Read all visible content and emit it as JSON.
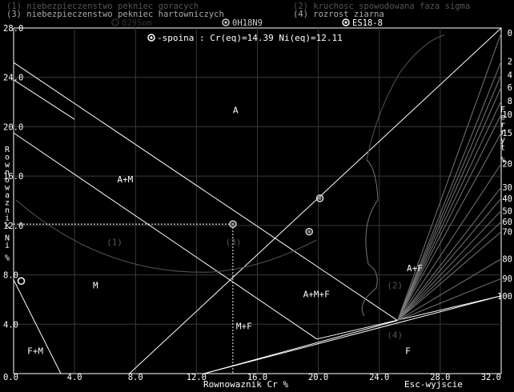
{
  "header": {
    "line1_left": "(1) niebezpieczenstwo pekniec goracych",
    "line1_right": "(2) kruchosc spowodowana faza sigma",
    "line2_left": "(3) niebezpieczenstwo pekniec hartowniczych",
    "line2_right": "(4) rozrost ziarna"
  },
  "legend": [
    {
      "label": "0295om",
      "marker": "open-circle",
      "color": "#303030",
      "dim": true
    },
    {
      "label": "0H18N9",
      "marker": "dotted-circle",
      "color": "#c0c0c0",
      "dim": false
    },
    {
      "label": "ES18-8",
      "marker": "dotted-circle",
      "color": "#ffffff",
      "dim": false
    }
  ],
  "weld_info": {
    "label": "-spoina : Cr(eq)=14.39  Ni(eq)=12.11",
    "cr_eq": 14.39,
    "ni_eq": 12.11
  },
  "footer": {
    "esc_text": "Esc-wyjscie"
  },
  "colors": {
    "background": "#000000",
    "foreground": "#ffffff",
    "grid": "#3a3a3a",
    "boundary": "#ffffff",
    "ferrite_lines": "#777777",
    "dim_region": "#555555"
  },
  "chart_data": {
    "type": "scatter",
    "title": "",
    "xlabel": "Rownowaznik Cr %",
    "ylabel": "Rownowaznik Ni %",
    "right_axis_label": "Ferryt %",
    "xlim": [
      0,
      32
    ],
    "ylim": [
      0,
      28
    ],
    "x_ticks": [
      {
        "value": 0,
        "label": "0.0"
      },
      {
        "value": 4,
        "label": "4.0"
      },
      {
        "value": 8,
        "label": "8.0"
      },
      {
        "value": 12,
        "label": "12.0"
      },
      {
        "value": 16,
        "label": "16.0"
      },
      {
        "value": 20,
        "label": "20.0"
      },
      {
        "value": 24,
        "label": "24.0"
      },
      {
        "value": 28,
        "label": "28.0"
      },
      {
        "value": 32,
        "label": "32.0"
      }
    ],
    "y_ticks": [
      {
        "value": 0,
        "label": "0.0"
      },
      {
        "value": 4,
        "label": "4.0"
      },
      {
        "value": 8,
        "label": "8.0"
      },
      {
        "value": 12,
        "label": "12.0"
      },
      {
        "value": 16,
        "label": "16.0"
      },
      {
        "value": 20,
        "label": "20.0"
      },
      {
        "value": 24,
        "label": "24.0"
      },
      {
        "value": 28,
        "label": "28.0"
      }
    ],
    "grid": true,
    "ferrite_labels": [
      {
        "label": "0",
        "y": 27.6
      },
      {
        "label": "2",
        "y": 25.3
      },
      {
        "label": "4",
        "y": 24.2
      },
      {
        "label": "6",
        "y": 23.2
      },
      {
        "label": "8",
        "y": 22.1
      },
      {
        "label": "10",
        "y": 21.0
      },
      {
        "label": "15",
        "y": 19.5
      },
      {
        "label": "20",
        "y": 17.0
      },
      {
        "label": "30",
        "y": 15.1
      },
      {
        "label": "40",
        "y": 14.2
      },
      {
        "label": "50",
        "y": 13.2
      },
      {
        "label": "60",
        "y": 12.3
      },
      {
        "label": "70",
        "y": 11.5
      },
      {
        "label": "80",
        "y": 9.3
      },
      {
        "label": "90",
        "y": 7.7
      },
      {
        "label": "100",
        "y": 6.3
      }
    ],
    "points": [
      {
        "name": "0295om",
        "x": 0.5,
        "y": 7.5,
        "marker": "open-circle"
      },
      {
        "name": "0H18N9",
        "x": 20.1,
        "y": 14.2,
        "marker": "dotted-circle"
      },
      {
        "name": "ES18-8",
        "x": 19.4,
        "y": 11.5,
        "marker": "dotted-circle"
      },
      {
        "name": "spoina",
        "x": 14.39,
        "y": 12.11,
        "marker": "dotted-circle"
      }
    ],
    "region_labels": [
      {
        "label": "A",
        "x": 14.4,
        "y": 21.1,
        "dim": false
      },
      {
        "label": "A+M",
        "x": 6.8,
        "y": 15.5,
        "dim": false
      },
      {
        "label": "M",
        "x": 5.2,
        "y": 6.9,
        "dim": false
      },
      {
        "label": "F+M",
        "x": 0.9,
        "y": 1.6,
        "dim": false
      },
      {
        "label": "M+F",
        "x": 14.6,
        "y": 3.6,
        "dim": false
      },
      {
        "label": "A+M+F",
        "x": 19.0,
        "y": 6.2,
        "dim": false
      },
      {
        "label": "A+F",
        "x": 25.8,
        "y": 8.3,
        "dim": false
      },
      {
        "label": "F",
        "x": 25.7,
        "y": 1.6,
        "dim": false
      },
      {
        "label": "(1)",
        "x": 6.1,
        "y": 10.4,
        "dim": true
      },
      {
        "label": "(3)",
        "x": 13.9,
        "y": 10.4,
        "dim": true
      },
      {
        "label": "(2)",
        "x": 24.5,
        "y": 6.9,
        "dim": true
      },
      {
        "label": "(4)",
        "x": 24.5,
        "y": 2.9,
        "dim": true
      }
    ],
    "boundaries": [
      {
        "name": "a-m-upper",
        "points": [
          [
            0,
            25.2
          ],
          [
            25.2,
            4.3
          ]
        ]
      },
      {
        "name": "a-m-lower",
        "points": [
          [
            0,
            19.5
          ],
          [
            19.9,
            2.8
          ]
        ]
      },
      {
        "name": "a-m-inner",
        "points": [
          [
            0,
            23.8
          ],
          [
            4,
            20.6
          ]
        ]
      },
      {
        "name": "m-line",
        "points": [
          [
            7.6,
            0
          ],
          [
            32,
            28
          ]
        ]
      },
      {
        "name": "f-m-line",
        "points": [
          [
            0,
            7.6
          ],
          [
            3.1,
            0
          ]
        ]
      },
      {
        "name": "f-boundary-1",
        "points": [
          [
            12.5,
            0
          ],
          [
            32,
            6.3
          ]
        ]
      },
      {
        "name": "f-boundary-2",
        "points": [
          [
            19.9,
            2.8
          ],
          [
            32,
            6.3
          ]
        ]
      },
      {
        "name": "m-f-line",
        "points": [
          [
            12.5,
            0
          ],
          [
            25.2,
            4.3
          ]
        ]
      }
    ],
    "ferrite_lines_to": [
      [
        32,
        27.6
      ],
      [
        32,
        25.3
      ],
      [
        32,
        24.2
      ],
      [
        32,
        23.2
      ],
      [
        32,
        22.1
      ],
      [
        32,
        21.0
      ],
      [
        32,
        19.5
      ],
      [
        32,
        17.0
      ],
      [
        32,
        15.1
      ],
      [
        32,
        14.2
      ],
      [
        32,
        13.2
      ],
      [
        32,
        12.3
      ],
      [
        32,
        11.5
      ],
      [
        32,
        9.3
      ],
      [
        32,
        7.7
      ]
    ],
    "ferrite_lines_from": [
      25.2,
      4.3
    ],
    "weld_crosshair": {
      "x": 14.39,
      "y": 12.11
    }
  }
}
